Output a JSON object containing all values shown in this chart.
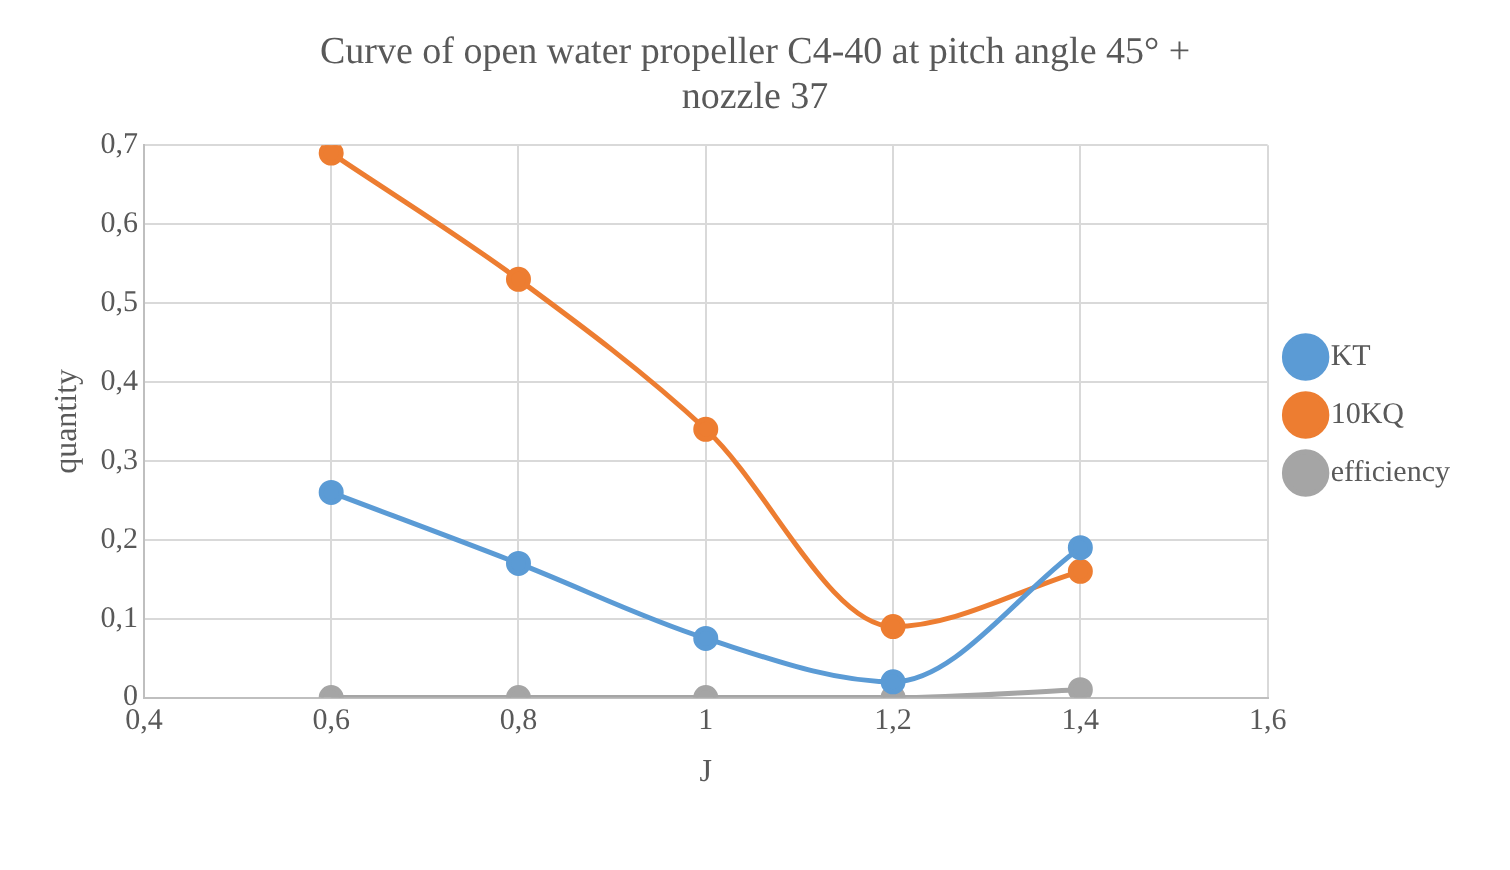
{
  "chart_data": {
    "type": "line",
    "title": "Curve of open water propeller C4-40 at pitch angle 45° + nozzle 37",
    "xlabel": "J",
    "ylabel": "quantity",
    "x": [
      0.6,
      0.8,
      1,
      1.2,
      1.4
    ],
    "series": [
      {
        "name": "KT",
        "color": "#5b9bd5",
        "values": [
          0.26,
          0.17,
          0.075,
          0.02,
          0.19
        ]
      },
      {
        "name": "10KQ",
        "color": "#ed7d31",
        "values": [
          0.69,
          0.53,
          0.34,
          0.09,
          0.16
        ]
      },
      {
        "name": "efficiency",
        "color": "#a5a5a5",
        "values": [
          0,
          0,
          0,
          0,
          0.01
        ]
      }
    ],
    "xlim": [
      0.4,
      1.6
    ],
    "xticks": [
      {
        "value": 0.4,
        "label": "0,4"
      },
      {
        "value": 0.6,
        "label": "0,6"
      },
      {
        "value": 0.8,
        "label": "0,8"
      },
      1,
      {
        "value": 1.2,
        "label": "1,2"
      },
      {
        "value": 1.4,
        "label": "1,4"
      },
      {
        "value": 1.6,
        "label": "1,6"
      }
    ],
    "ylim": [
      0,
      0.7
    ],
    "yticks": [
      0,
      {
        "value": 0.1,
        "label": "0,1"
      },
      {
        "value": 0.2,
        "label": "0,2"
      },
      {
        "value": 0.3,
        "label": "0,3"
      },
      {
        "value": 0.4,
        "label": "0,4"
      },
      {
        "value": 0.5,
        "label": "0,5"
      },
      {
        "value": 0.6,
        "label": "0,6"
      },
      {
        "value": 0.7,
        "label": "0,7"
      }
    ],
    "grid": true,
    "legend": "right",
    "marker": "circle",
    "line_style": "solid"
  }
}
